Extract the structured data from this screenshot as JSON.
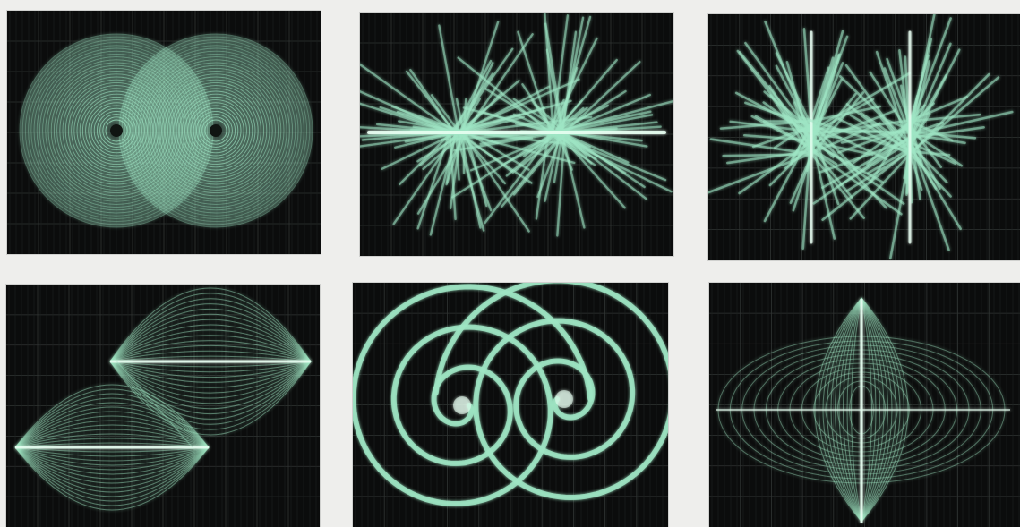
{
  "figure": {
    "panels": [
      {
        "id": "p1",
        "subject": "two-overlapping-circle-patterns"
      },
      {
        "id": "p2",
        "subject": "radial-spike-burst-pair-horizontal"
      },
      {
        "id": "p3",
        "subject": "radial-spike-burst-pair-vertical"
      },
      {
        "id": "p4",
        "subject": "stacked-lens-loop-pair"
      },
      {
        "id": "p5",
        "subject": "double-spiral"
      },
      {
        "id": "p6",
        "subject": "diamond-lissajous-figure"
      }
    ],
    "colors": {
      "trace": "#9fe6c4",
      "glow": "#e8fff2",
      "screen": "#0b0c0c",
      "grid": "#3a3f3d",
      "page": "#eeeeec"
    }
  }
}
